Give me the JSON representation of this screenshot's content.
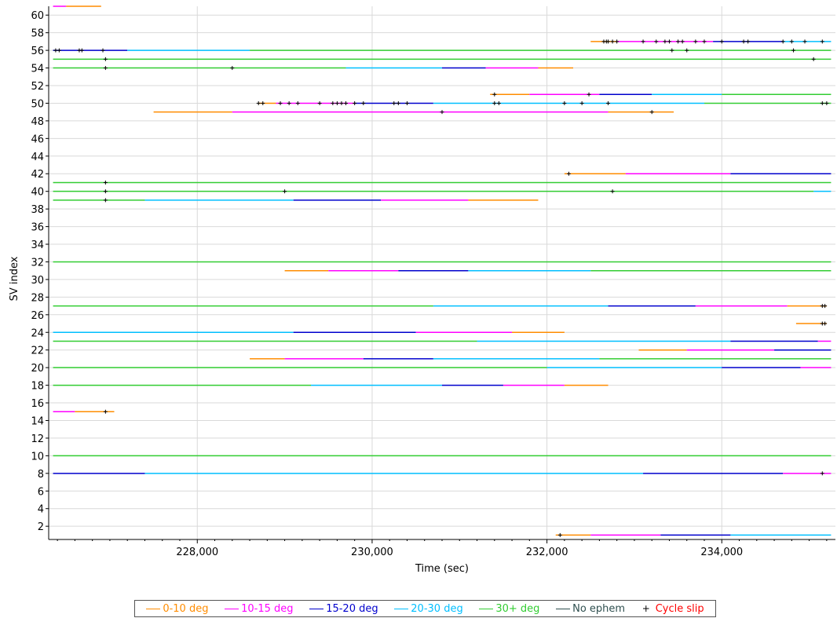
{
  "chart_data": {
    "type": "line",
    "xlabel": "Time (sec)",
    "ylabel": "SV index",
    "xlim": [
      226300,
      235300
    ],
    "ylim": [
      0.5,
      61
    ],
    "x_ticks": [
      228000,
      230000,
      232000,
      234000
    ],
    "x_tick_labels": [
      "228,000",
      "230,000",
      "232,000",
      "234,000"
    ],
    "y_ticks": [
      2,
      4,
      6,
      8,
      10,
      12,
      14,
      16,
      18,
      20,
      22,
      24,
      26,
      28,
      30,
      32,
      34,
      36,
      38,
      40,
      42,
      44,
      46,
      48,
      50,
      52,
      54,
      56,
      58,
      60
    ],
    "grid": true,
    "legend_position": "bottom",
    "legend": [
      {
        "key": "e0",
        "label": "0-10 deg",
        "color": "#ff8c00",
        "text_color": "#ff8c00"
      },
      {
        "key": "e10",
        "label": "10-15 deg",
        "color": "#ff00ff",
        "text_color": "#ff00ff"
      },
      {
        "key": "e15",
        "label": "15-20 deg",
        "color": "#0000cd",
        "text_color": "#0000cd"
      },
      {
        "key": "e20",
        "label": "20-30 deg",
        "color": "#00bfff",
        "text_color": "#00bfff"
      },
      {
        "key": "e30",
        "label": "30+ deg",
        "color": "#32cd32",
        "text_color": "#32cd32"
      },
      {
        "key": "noeph",
        "label": "No ephem",
        "color": "#2f4f4f",
        "text_color": "#2f4f4f"
      },
      {
        "key": "slip",
        "label": "Cycle slip",
        "color": "#000000",
        "text_color": "#ff0000",
        "marker": "+"
      }
    ],
    "tracks": [
      {
        "sv": 61,
        "segments": [
          [
            226350,
            226500,
            "e10"
          ],
          [
            226500,
            226900,
            "e0"
          ]
        ],
        "slips": []
      },
      {
        "sv": 57,
        "segments": [
          [
            232500,
            232800,
            "e0"
          ],
          [
            232800,
            233900,
            "e10"
          ],
          [
            233900,
            234700,
            "e15"
          ],
          [
            234700,
            235250,
            "e20"
          ]
        ],
        "slips": [
          232650,
          232680,
          232700,
          232750,
          232800,
          233100,
          233250,
          233350,
          233400,
          233500,
          233550,
          233700,
          233800,
          234000,
          234250,
          234300,
          234700,
          234800,
          234950,
          235150
        ]
      },
      {
        "sv": 56,
        "segments": [
          [
            226350,
            227200,
            "e15"
          ],
          [
            227200,
            228600,
            "e20"
          ],
          [
            228600,
            235250,
            "e30"
          ]
        ],
        "slips": [
          226380,
          226420,
          226650,
          226680,
          226920,
          233430,
          233600,
          234820
        ]
      },
      {
        "sv": 55,
        "segments": [
          [
            226350,
            235250,
            "e30"
          ]
        ],
        "slips": [
          226950,
          235050
        ]
      },
      {
        "sv": 54,
        "segments": [
          [
            226350,
            229700,
            "e30"
          ],
          [
            229700,
            230800,
            "e20"
          ],
          [
            230800,
            231300,
            "e15"
          ],
          [
            231300,
            231900,
            "e10"
          ],
          [
            231900,
            232300,
            "e0"
          ]
        ],
        "slips": [
          226950,
          228400
        ]
      },
      {
        "sv": 51,
        "segments": [
          [
            231350,
            231800,
            "e0"
          ],
          [
            231800,
            232600,
            "e10"
          ],
          [
            232600,
            233200,
            "e15"
          ],
          [
            233200,
            234000,
            "e20"
          ],
          [
            234000,
            235250,
            "e30"
          ]
        ],
        "slips": [
          231400,
          232480
        ]
      },
      {
        "sv": 50,
        "segments": [
          [
            228700,
            228900,
            "e0"
          ],
          [
            228900,
            229800,
            "e10"
          ],
          [
            229800,
            230700,
            "e15"
          ],
          [
            230700,
            233800,
            "e20"
          ],
          [
            233800,
            235250,
            "e30"
          ]
        ],
        "slips": [
          228700,
          228750,
          228950,
          229050,
          229150,
          229400,
          229550,
          229600,
          229650,
          229700,
          229800,
          229900,
          230250,
          230300,
          230400,
          231400,
          231450,
          232200,
          232400,
          232700,
          235150,
          235200
        ]
      },
      {
        "sv": 49,
        "segments": [
          [
            227500,
            228400,
            "e0"
          ],
          [
            228400,
            232700,
            "e10"
          ],
          [
            232700,
            233450,
            "e0"
          ]
        ],
        "slips": [
          230800,
          233200
        ]
      },
      {
        "sv": 42,
        "segments": [
          [
            232200,
            232900,
            "e0"
          ],
          [
            232900,
            234100,
            "e10"
          ],
          [
            234100,
            235250,
            "e15"
          ]
        ],
        "slips": [
          232250
        ]
      },
      {
        "sv": 41,
        "segments": [
          [
            226350,
            235250,
            "e30"
          ]
        ],
        "slips": [
          226950
        ]
      },
      {
        "sv": 40,
        "segments": [
          [
            226350,
            235050,
            "e30"
          ],
          [
            235050,
            235250,
            "e20"
          ]
        ],
        "slips": [
          226950,
          229000,
          232750
        ]
      },
      {
        "sv": 39,
        "segments": [
          [
            226350,
            227400,
            "e30"
          ],
          [
            227400,
            229100,
            "e20"
          ],
          [
            229100,
            230100,
            "e15"
          ],
          [
            230100,
            231100,
            "e10"
          ],
          [
            231100,
            231900,
            "e0"
          ]
        ],
        "slips": [
          226950
        ]
      },
      {
        "sv": 32,
        "segments": [
          [
            226350,
            235250,
            "e30"
          ]
        ],
        "slips": []
      },
      {
        "sv": 31,
        "segments": [
          [
            229000,
            229500,
            "e0"
          ],
          [
            229500,
            230300,
            "e10"
          ],
          [
            230300,
            231100,
            "e15"
          ],
          [
            231100,
            232500,
            "e20"
          ],
          [
            232500,
            235250,
            "e30"
          ]
        ],
        "slips": []
      },
      {
        "sv": 27,
        "segments": [
          [
            226350,
            230700,
            "e30"
          ],
          [
            230700,
            232700,
            "e20"
          ],
          [
            232700,
            233700,
            "e15"
          ],
          [
            233700,
            234750,
            "e10"
          ],
          [
            234750,
            235200,
            "e0"
          ]
        ],
        "slips": [
          235150,
          235180
        ]
      },
      {
        "sv": 25,
        "segments": [
          [
            234850,
            235200,
            "e0"
          ]
        ],
        "slips": [
          235150,
          235180
        ]
      },
      {
        "sv": 24,
        "segments": [
          [
            226350,
            229100,
            "e20"
          ],
          [
            229100,
            230500,
            "e15"
          ],
          [
            230500,
            231600,
            "e10"
          ],
          [
            231600,
            232200,
            "e0"
          ]
        ],
        "slips": []
      },
      {
        "sv": 23,
        "segments": [
          [
            226350,
            231200,
            "e30"
          ],
          [
            231200,
            234100,
            "e20"
          ],
          [
            234100,
            235100,
            "e15"
          ],
          [
            235100,
            235250,
            "e10"
          ]
        ],
        "slips": []
      },
      {
        "sv": 22,
        "segments": [
          [
            233050,
            233600,
            "e0"
          ],
          [
            233600,
            234600,
            "e10"
          ],
          [
            234600,
            235250,
            "e15"
          ]
        ],
        "slips": []
      },
      {
        "sv": 21,
        "segments": [
          [
            228600,
            229000,
            "e0"
          ],
          [
            229000,
            229900,
            "e10"
          ],
          [
            229900,
            230700,
            "e15"
          ],
          [
            230700,
            232600,
            "e20"
          ],
          [
            232600,
            235250,
            "e30"
          ]
        ],
        "slips": []
      },
      {
        "sv": 20,
        "segments": [
          [
            226350,
            232000,
            "e30"
          ],
          [
            232000,
            234000,
            "e20"
          ],
          [
            234000,
            234900,
            "e15"
          ],
          [
            234900,
            235250,
            "e10"
          ]
        ],
        "slips": []
      },
      {
        "sv": 18,
        "segments": [
          [
            226350,
            229300,
            "e30"
          ],
          [
            229300,
            230800,
            "e20"
          ],
          [
            230800,
            231500,
            "e15"
          ],
          [
            231500,
            232200,
            "e10"
          ],
          [
            232200,
            232700,
            "e0"
          ]
        ],
        "slips": []
      },
      {
        "sv": 15,
        "segments": [
          [
            226350,
            226600,
            "e10"
          ],
          [
            226600,
            227050,
            "e0"
          ]
        ],
        "slips": [
          226950
        ]
      },
      {
        "sv": 10,
        "segments": [
          [
            226350,
            235250,
            "e30"
          ]
        ],
        "slips": []
      },
      {
        "sv": 8,
        "segments": [
          [
            226350,
            227400,
            "e15"
          ],
          [
            227400,
            233100,
            "e20"
          ],
          [
            233100,
            234700,
            "e15"
          ],
          [
            234700,
            235250,
            "e10"
          ]
        ],
        "slips": [
          235150
        ]
      },
      {
        "sv": 1,
        "segments": [
          [
            232100,
            232500,
            "e0"
          ],
          [
            232500,
            233300,
            "e10"
          ],
          [
            233300,
            234100,
            "e15"
          ],
          [
            234100,
            235250,
            "e20"
          ]
        ],
        "slips": [
          232150
        ]
      }
    ]
  }
}
